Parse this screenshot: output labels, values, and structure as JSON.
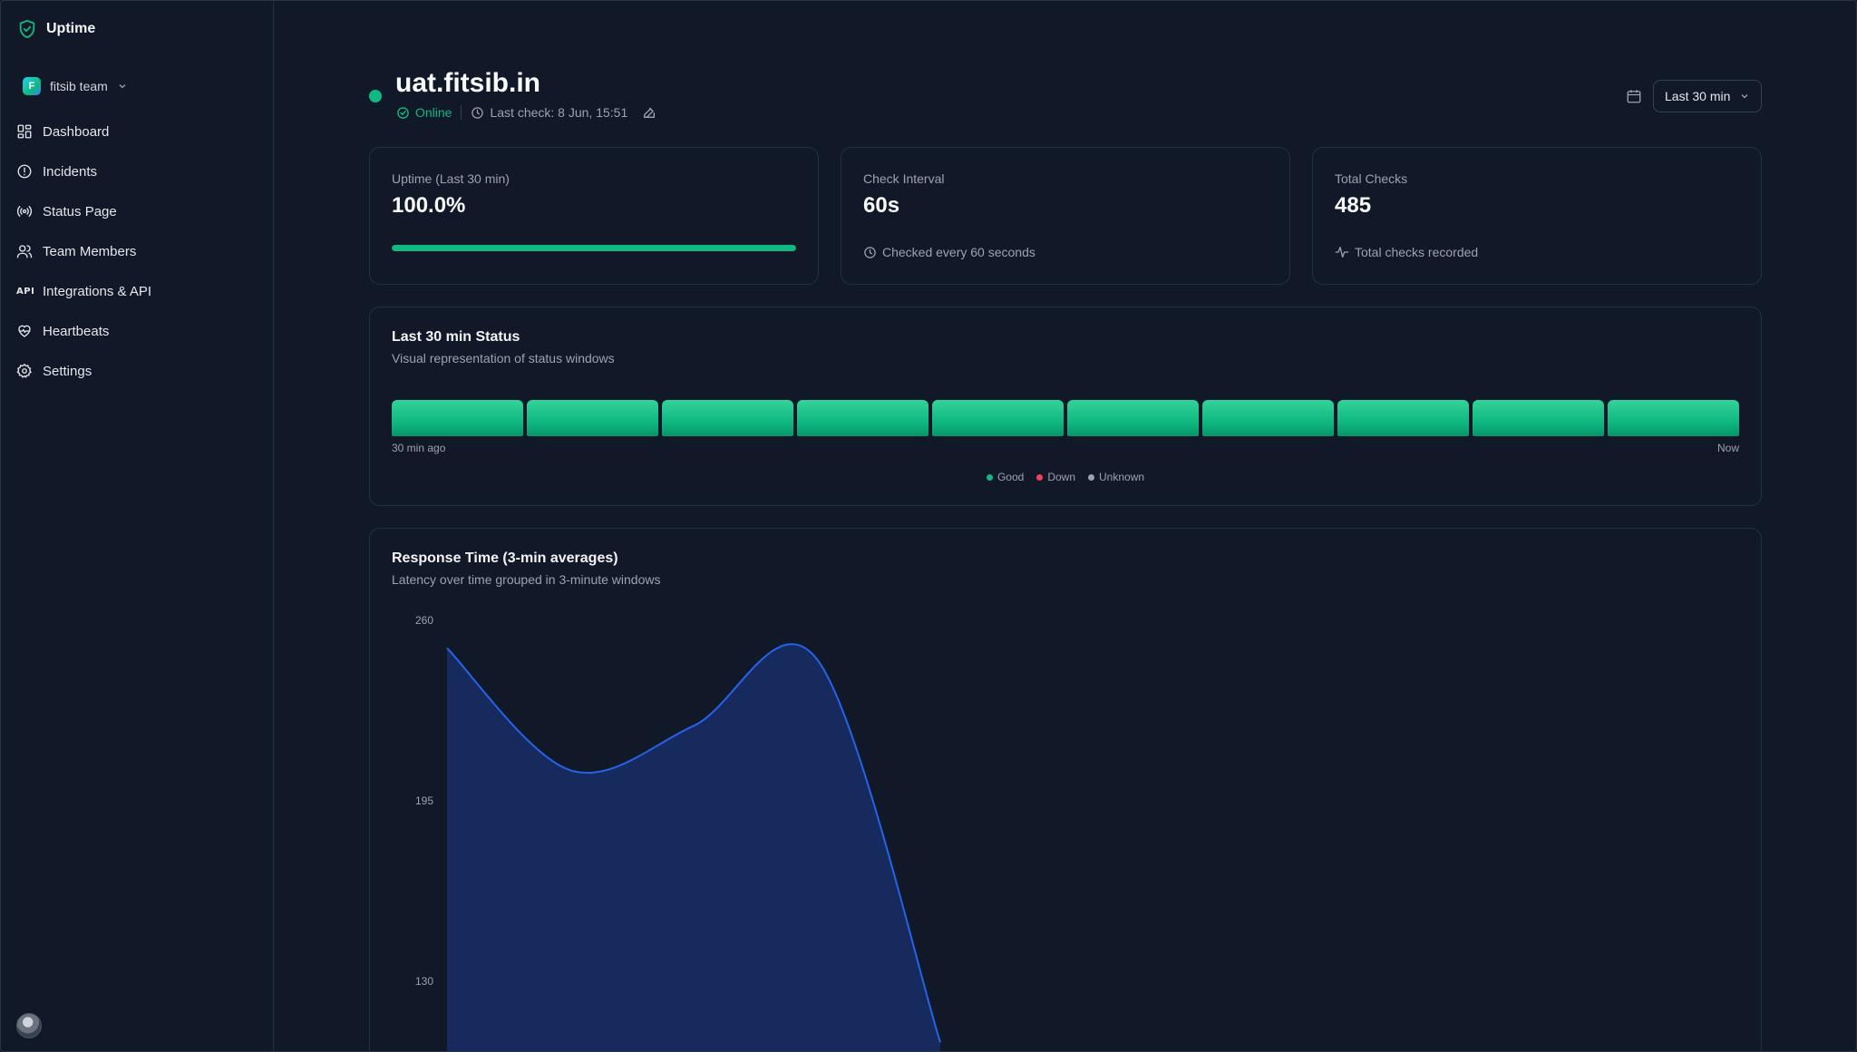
{
  "sidebar": {
    "brand": "Uptime",
    "team": {
      "name": "fitsib team",
      "avatar_letter": "F"
    },
    "items": [
      {
        "label": "Dashboard",
        "icon": "dashboard-icon"
      },
      {
        "label": "Incidents",
        "icon": "alert-circle-icon"
      },
      {
        "label": "Status Page",
        "icon": "broadcast-icon"
      },
      {
        "label": "Team Members",
        "icon": "users-icon"
      },
      {
        "label": "Integrations & API",
        "icon": "api-icon",
        "glyph": "API"
      },
      {
        "label": "Heartbeats",
        "icon": "heart-pulse-icon"
      },
      {
        "label": "Settings",
        "icon": "gear-icon"
      }
    ]
  },
  "header": {
    "title": "uat.fitsib.in",
    "status": "Online",
    "last_check": "Last check: 8 Jun, 15:51",
    "range": "Last 30 min"
  },
  "cards": {
    "uptime": {
      "label": "Uptime (Last 30 min)",
      "value": "100.0%",
      "progress": 1.0
    },
    "interval": {
      "label": "Check Interval",
      "value": "60s",
      "foot": "Checked every 60 seconds"
    },
    "total": {
      "label": "Total Checks",
      "value": "485",
      "foot": "Total checks recorded"
    }
  },
  "status_section": {
    "title": "Last 30 min Status",
    "subtitle": "Visual representation of status windows",
    "windows": [
      "good",
      "good",
      "good",
      "good",
      "good",
      "good",
      "good",
      "good",
      "good",
      "good"
    ],
    "start_label": "30 min ago",
    "end_label": "Now",
    "legend": {
      "good": "Good",
      "down": "Down",
      "unknown": "Unknown"
    }
  },
  "colors": {
    "good": "#10b981",
    "down": "#f43f5e",
    "unknown": "#9ca3af",
    "accent": "#2563eb"
  },
  "response_section": {
    "title": "Response Time (3-min averages)",
    "subtitle": "Latency over time grouped in 3-minute windows"
  },
  "chart_data": {
    "type": "area",
    "yticks": [
      260,
      195,
      130
    ],
    "ylim": [
      65,
      260
    ],
    "x": [
      0,
      1,
      2,
      3,
      4
    ],
    "values": [
      250,
      206,
      222,
      246,
      108
    ]
  }
}
